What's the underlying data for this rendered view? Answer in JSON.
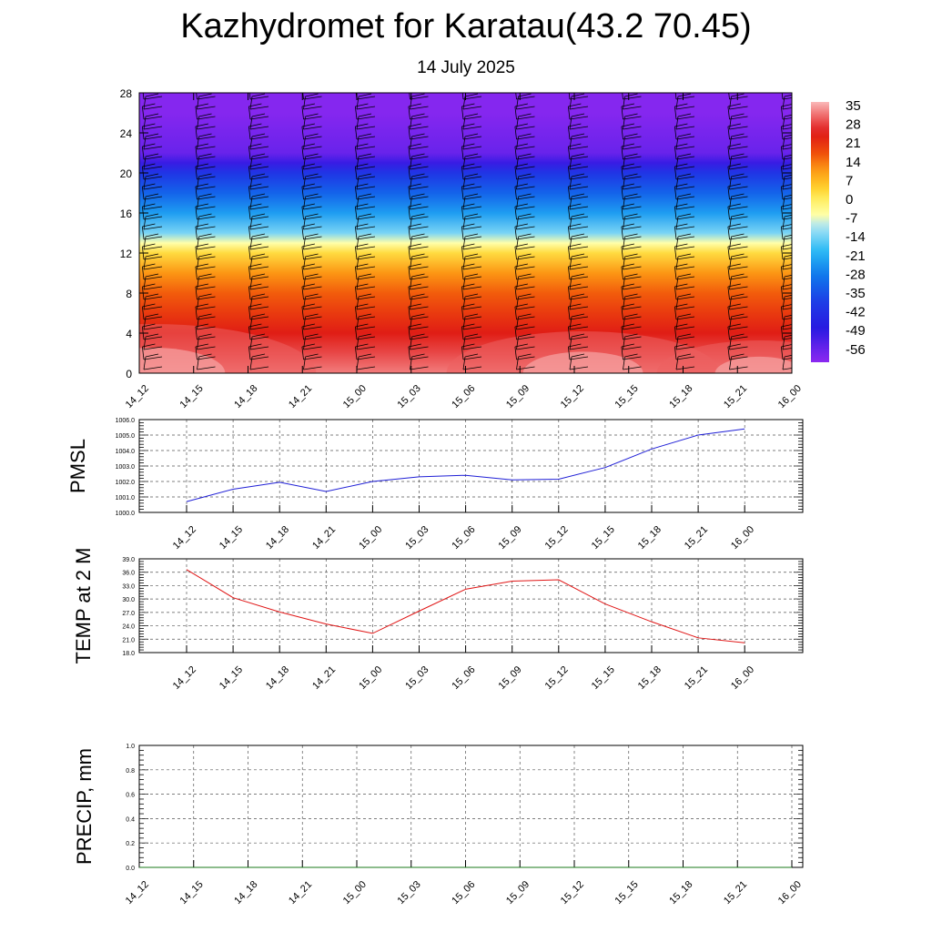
{
  "title": "Kazhydromet for Karatau(43.2 70.45)",
  "subtitle": "14 July 2025",
  "colors": {
    "pmsl_line": "#1f1fd6",
    "temp_line": "#e01616",
    "precip_line": "#1a7a1a",
    "grid": "#555555",
    "barb": "#000000"
  },
  "chart_data": [
    {
      "type": "heatmap",
      "title": "",
      "xlabel": "",
      "ylabel": "",
      "x_tick_labels": [
        "14_12",
        "14_15",
        "14_18",
        "14_21",
        "15_00",
        "15_03",
        "15_06",
        "15_09",
        "15_12",
        "15_15",
        "15_18",
        "15_21",
        "16_00"
      ],
      "y_ticks": [
        0,
        4,
        8,
        12,
        16,
        20,
        24,
        28
      ],
      "ylim": [
        0,
        28
      ],
      "value_description": "temperature vertical cross-section with wind barbs",
      "levels": [
        0,
        2,
        4,
        6,
        8,
        10,
        12,
        13,
        14,
        16,
        18,
        20,
        21,
        22,
        24,
        26,
        28
      ],
      "level_temperatures": [
        34,
        30,
        25,
        21,
        17,
        12,
        3,
        -6,
        -14,
        -24,
        -33,
        -42,
        -52,
        -58,
        -60,
        -62,
        -62
      ],
      "colorbar": {
        "labels": [
          "35",
          "28",
          "21",
          "14",
          "7",
          "0",
          "-7",
          "-14",
          "-21",
          "-28",
          "-35",
          "-42",
          "-49",
          "-56"
        ],
        "range": [
          -63,
          38
        ]
      }
    },
    {
      "type": "line",
      "ylabel": "PMSL",
      "ylim": [
        1000.0,
        1006.0
      ],
      "y_tick_labels": [
        "1000.0",
        "1001.0",
        "1002.0",
        "1003.0",
        "1004.0",
        "1005.0",
        "1006.0"
      ],
      "categories": [
        "14_12",
        "14_15",
        "14_18",
        "14_21",
        "15_00",
        "15_03",
        "15_06",
        "15_09",
        "15_12",
        "15_15",
        "15_18",
        "15_21",
        "16_00"
      ],
      "series": [
        {
          "values": [
            1000.7,
            1001.5,
            1001.95,
            1001.35,
            1002.0,
            1002.3,
            1002.4,
            1002.1,
            1002.15,
            1002.9,
            1004.1,
            1005.0,
            1005.4
          ]
        }
      ],
      "grid": true
    },
    {
      "type": "line",
      "ylabel": "TEMP at 2 M",
      "ylim": [
        18.0,
        39.0
      ],
      "y_tick_labels": [
        "18.0",
        "21.0",
        "24.0",
        "27.0",
        "30.0",
        "33.0",
        "36.0",
        "39.0"
      ],
      "categories": [
        "14_12",
        "14_15",
        "14_18",
        "14_21",
        "15_00",
        "15_03",
        "15_06",
        "15_09",
        "15_12",
        "15_15",
        "15_18",
        "15_21",
        "16_00"
      ],
      "series": [
        {
          "values": [
            36.6,
            30.3,
            27.1,
            24.4,
            22.3,
            27.3,
            32.2,
            34.0,
            34.3,
            28.9,
            24.9,
            21.3,
            20.2
          ]
        }
      ],
      "grid": true
    },
    {
      "type": "line",
      "ylabel": "PRECIP, mm",
      "ylim": [
        0.0,
        1.0
      ],
      "y_tick_labels": [
        "0.0",
        "0.2",
        "0.4",
        "0.6",
        "0.8",
        "1.0"
      ],
      "categories": [
        "14_12",
        "14_15",
        "14_18",
        "14_21",
        "15_00",
        "15_03",
        "15_06",
        "15_09",
        "15_12",
        "15_15",
        "15_18",
        "15_21",
        "16_00"
      ],
      "series": [
        {
          "values": [
            0,
            0,
            0,
            0,
            0,
            0,
            0,
            0,
            0,
            0,
            0,
            0,
            0
          ]
        }
      ],
      "grid": true
    }
  ]
}
